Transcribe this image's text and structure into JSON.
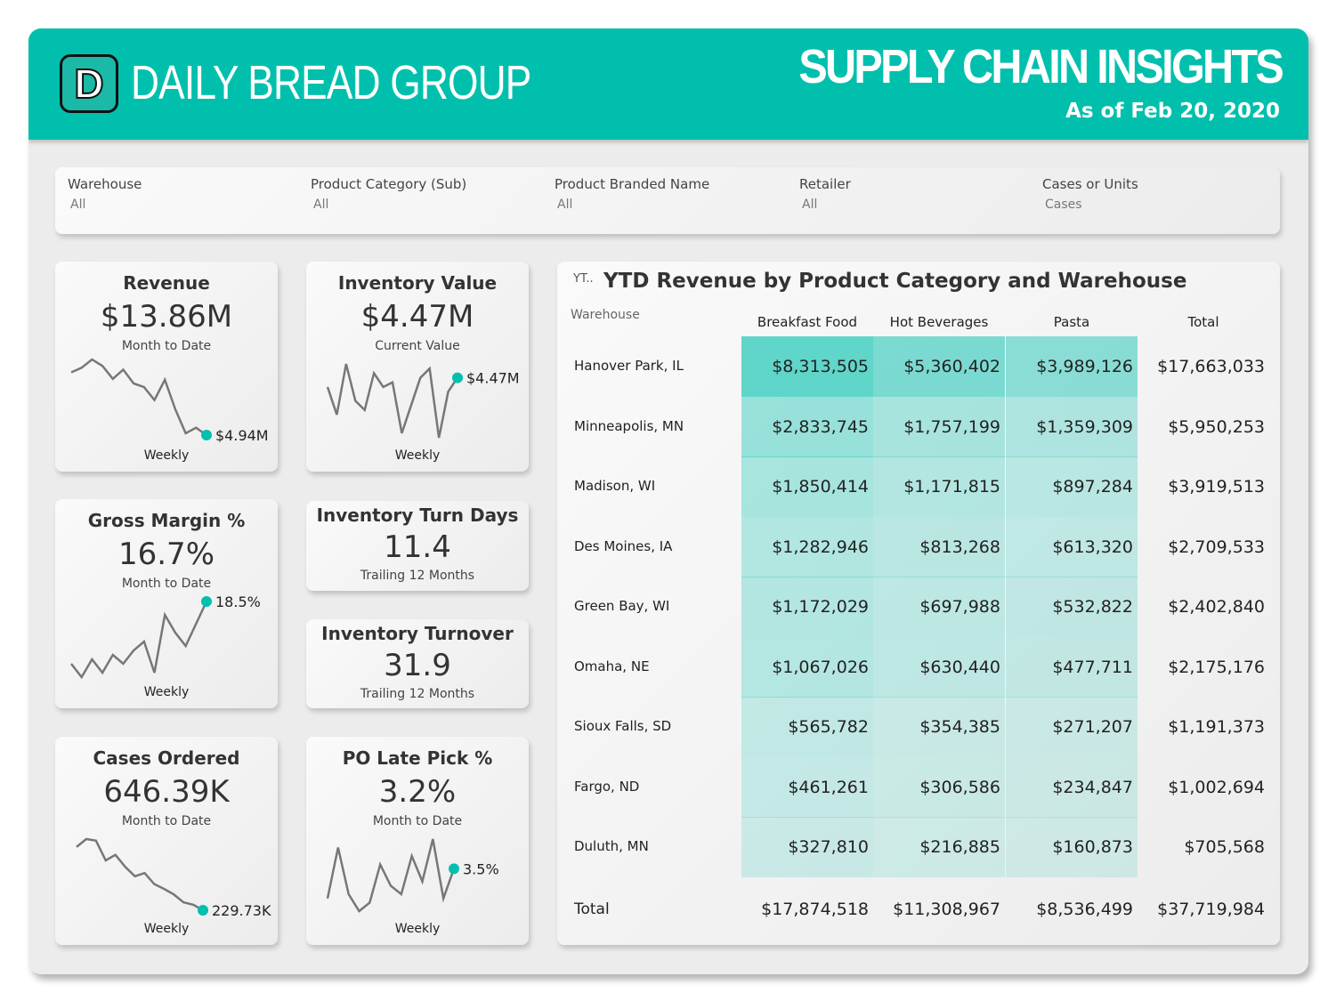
{
  "header": {
    "company": "DAILY BREAD GROUP",
    "logo_letter": "D",
    "title": "SUPPLY CHAIN INSIGHTS",
    "as_of": "As of Feb 20, 2020",
    "brand_color": "#00c0ad"
  },
  "filters": [
    {
      "label": "Warehouse",
      "value": "All"
    },
    {
      "label": "Product Category (Sub)",
      "value": "All"
    },
    {
      "label": "Product Branded Name",
      "value": "All"
    },
    {
      "label": "Retailer",
      "value": "All"
    },
    {
      "label": "Cases or Units",
      "value": "Cases"
    }
  ],
  "kpis": {
    "revenue": {
      "title": "Revenue",
      "value": "$13.86M",
      "sub": "Month to Date",
      "period": "Weekly",
      "last": "$4.94M",
      "spark": [
        80,
        85,
        94,
        87,
        73,
        83,
        68,
        64,
        50,
        72,
        40,
        14,
        20,
        12
      ]
    },
    "inv_value": {
      "title": "Inventory Value",
      "value": "$4.47M",
      "sub": "Current Value",
      "period": "Weekly",
      "last": "$4.47M",
      "spark": [
        70,
        40,
        95,
        55,
        45,
        85,
        70,
        75,
        20,
        50,
        80,
        90,
        15,
        65,
        80
      ]
    },
    "gross_margin": {
      "title": "Gross Margin %",
      "value": "16.7%",
      "sub": "Month to Date",
      "period": "Weekly",
      "last": "18.5%",
      "spark": [
        20,
        5,
        25,
        10,
        30,
        20,
        35,
        45,
        10,
        75,
        55,
        40,
        65,
        90
      ]
    },
    "turn_days": {
      "title": "Inventory Turn Days",
      "value": "11.4",
      "sub": "Trailing 12 Months"
    },
    "turnover": {
      "title": "Inventory Turnover",
      "value": "31.9",
      "sub": "Trailing 12 Months"
    },
    "cases": {
      "title": "Cases Ordered",
      "value": "646.39K",
      "sub": "Month to Date",
      "period": "Weekly",
      "last": "229.73K",
      "spark": [
        85,
        95,
        93,
        68,
        75,
        60,
        48,
        52,
        38,
        32,
        25,
        15,
        12,
        5
      ]
    },
    "late_pick": {
      "title": "PO Late Pick %",
      "value": "3.2%",
      "sub": "Month to Date",
      "period": "Weekly",
      "last": "3.5%",
      "spark": [
        20,
        80,
        25,
        5,
        15,
        60,
        35,
        25,
        70,
        40,
        90,
        20,
        55
      ]
    }
  },
  "table": {
    "tag": "YT..",
    "title": "YTD Revenue by Product Category and Warehouse",
    "row_header": "Warehouse",
    "columns": [
      "Breakfast Food",
      "Hot Beverages",
      "Pasta",
      "Total"
    ],
    "rows": [
      {
        "name": "Hanover Park, IL",
        "values": [
          "$8,313,505",
          "$5,360,402",
          "$3,989,126",
          "$17,663,033"
        ],
        "raw": [
          8313505,
          5360402,
          3989126
        ]
      },
      {
        "name": "Minneapolis, MN",
        "values": [
          "$2,833,745",
          "$1,757,199",
          "$1,359,309",
          "$5,950,253"
        ],
        "raw": [
          2833745,
          1757199,
          1359309
        ]
      },
      {
        "name": "Madison, WI",
        "values": [
          "$1,850,414",
          "$1,171,815",
          "$897,284",
          "$3,919,513"
        ],
        "raw": [
          1850414,
          1171815,
          897284
        ]
      },
      {
        "name": "Des Moines, IA",
        "values": [
          "$1,282,946",
          "$813,268",
          "$613,320",
          "$2,709,533"
        ],
        "raw": [
          1282946,
          813268,
          613320
        ]
      },
      {
        "name": "Green Bay, WI",
        "values": [
          "$1,172,029",
          "$697,988",
          "$532,822",
          "$2,402,840"
        ],
        "raw": [
          1172029,
          697988,
          532822
        ]
      },
      {
        "name": "Omaha, NE",
        "values": [
          "$1,067,026",
          "$630,440",
          "$477,711",
          "$2,175,176"
        ],
        "raw": [
          1067026,
          630440,
          477711
        ]
      },
      {
        "name": "Sioux Falls, SD",
        "values": [
          "$565,782",
          "$354,385",
          "$271,207",
          "$1,191,373"
        ],
        "raw": [
          565782,
          354385,
          271207
        ]
      },
      {
        "name": "Fargo, ND",
        "values": [
          "$461,261",
          "$306,586",
          "$234,847",
          "$1,002,694"
        ],
        "raw": [
          461261,
          306586,
          234847
        ]
      },
      {
        "name": "Duluth, MN",
        "values": [
          "$327,810",
          "$216,885",
          "$160,873",
          "$705,568"
        ],
        "raw": [
          327810,
          216885,
          160873
        ]
      }
    ],
    "total": {
      "name": "Total",
      "values": [
        "$17,874,518",
        "$11,308,967",
        "$8,536,499",
        "$37,719,984"
      ]
    },
    "heat_color": "#00c0ad"
  }
}
